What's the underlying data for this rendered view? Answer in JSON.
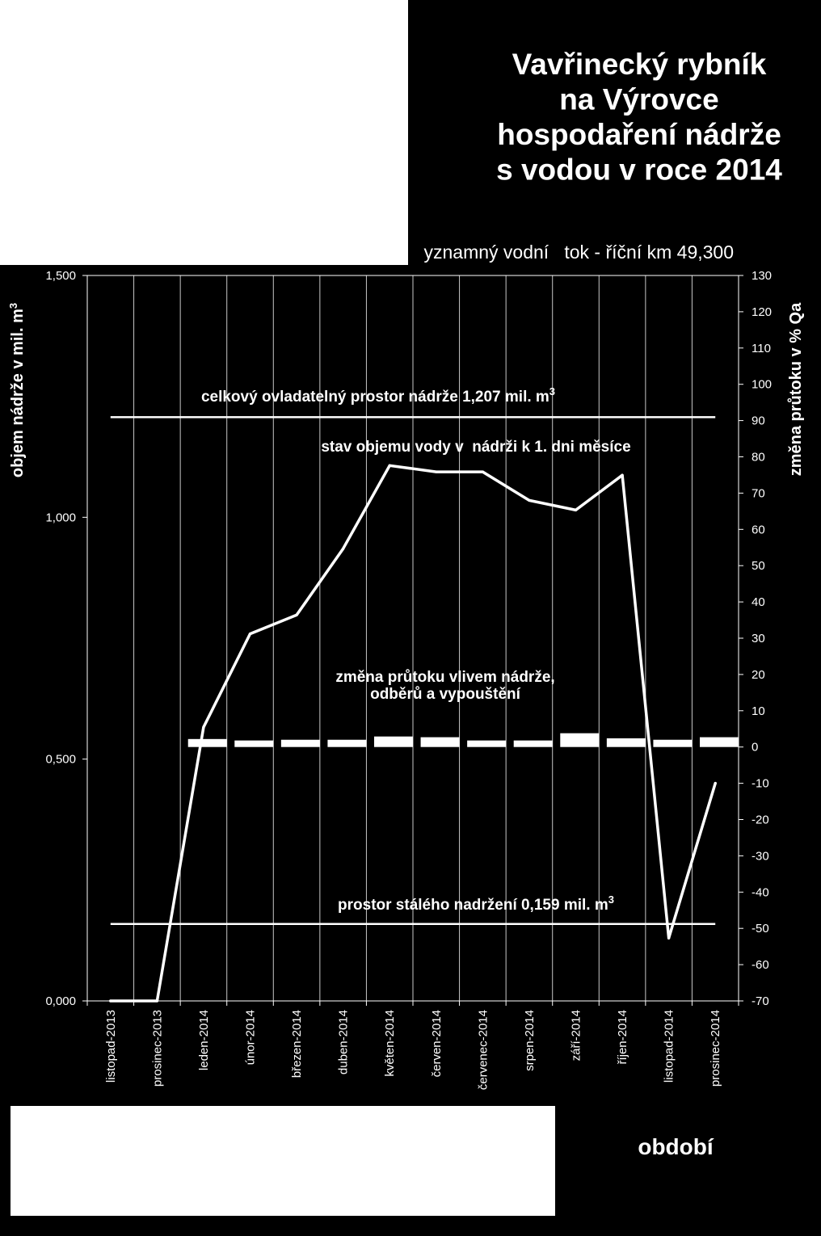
{
  "colors": {
    "background": "#000000",
    "foreground": "#ffffff",
    "panel": "#ffffff",
    "grid": "#c8c8c8"
  },
  "title_lines": [
    "Vavřinecký rybník",
    "na Výrovce",
    "hospodaření nádrže",
    "s vodou v roce 2014"
  ],
  "subtitle": "yznamný vodní   tok - říční km 49,300",
  "chart_data": {
    "type": "line",
    "categories": [
      "listopad-2013",
      "prosinec-2013",
      "leden-2014",
      "únor-2014",
      "březen-2014",
      "duben-2014",
      "květen-2014",
      "červen-2014",
      "červenec-2014",
      "srpen-2014",
      "září-2014",
      "říjen-2014",
      "listopad-2014",
      "prosinec-2014"
    ],
    "xlabel": "období",
    "y_left": {
      "label": "objem nádrže v mil. m",
      "label_sup": "3",
      "range": [
        0,
        1.5
      ],
      "ticks": [
        {
          "value": 1.5,
          "label": "1,500"
        },
        {
          "value": 1.0,
          "label": "1,000"
        },
        {
          "value": 0.5,
          "label": "0,500"
        },
        {
          "value": 0.0,
          "label": "0,000"
        }
      ]
    },
    "y_right": {
      "label": "změna průtoku v % Qa",
      "range": [
        -70,
        130
      ],
      "tick_step": 10
    },
    "series": [
      {
        "name": "stav objemu vody v  nádrži k 1. dni měsíce",
        "type": "line",
        "y_axis_index": 0,
        "values": [
          0.0,
          0.0,
          0.566,
          0.759,
          0.798,
          0.935,
          1.107,
          1.094,
          1.094,
          1.035,
          1.015,
          1.087,
          0.13,
          0.45
        ]
      },
      {
        "name_lines": [
          "změna průtoku vlivem nádrže,",
          "odběrů a vypouštění"
        ],
        "type": "bar",
        "y_axis_index": 1,
        "values": [
          null,
          null,
          2.2,
          1.8,
          2.0,
          2.0,
          2.9,
          2.7,
          1.8,
          1.8,
          3.8,
          2.4,
          2.0,
          2.7
        ]
      }
    ],
    "reference_lines": [
      {
        "label": "celkový ovladatelný prostor nádrže 1,207 mil. m",
        "label_sup": "3",
        "value": 1.207
      },
      {
        "label": "prostor stálého nadržení 0,159 mil. m",
        "label_sup": "3",
        "value": 0.159
      }
    ],
    "grid": {
      "vertical": true,
      "horizontal": false
    }
  }
}
